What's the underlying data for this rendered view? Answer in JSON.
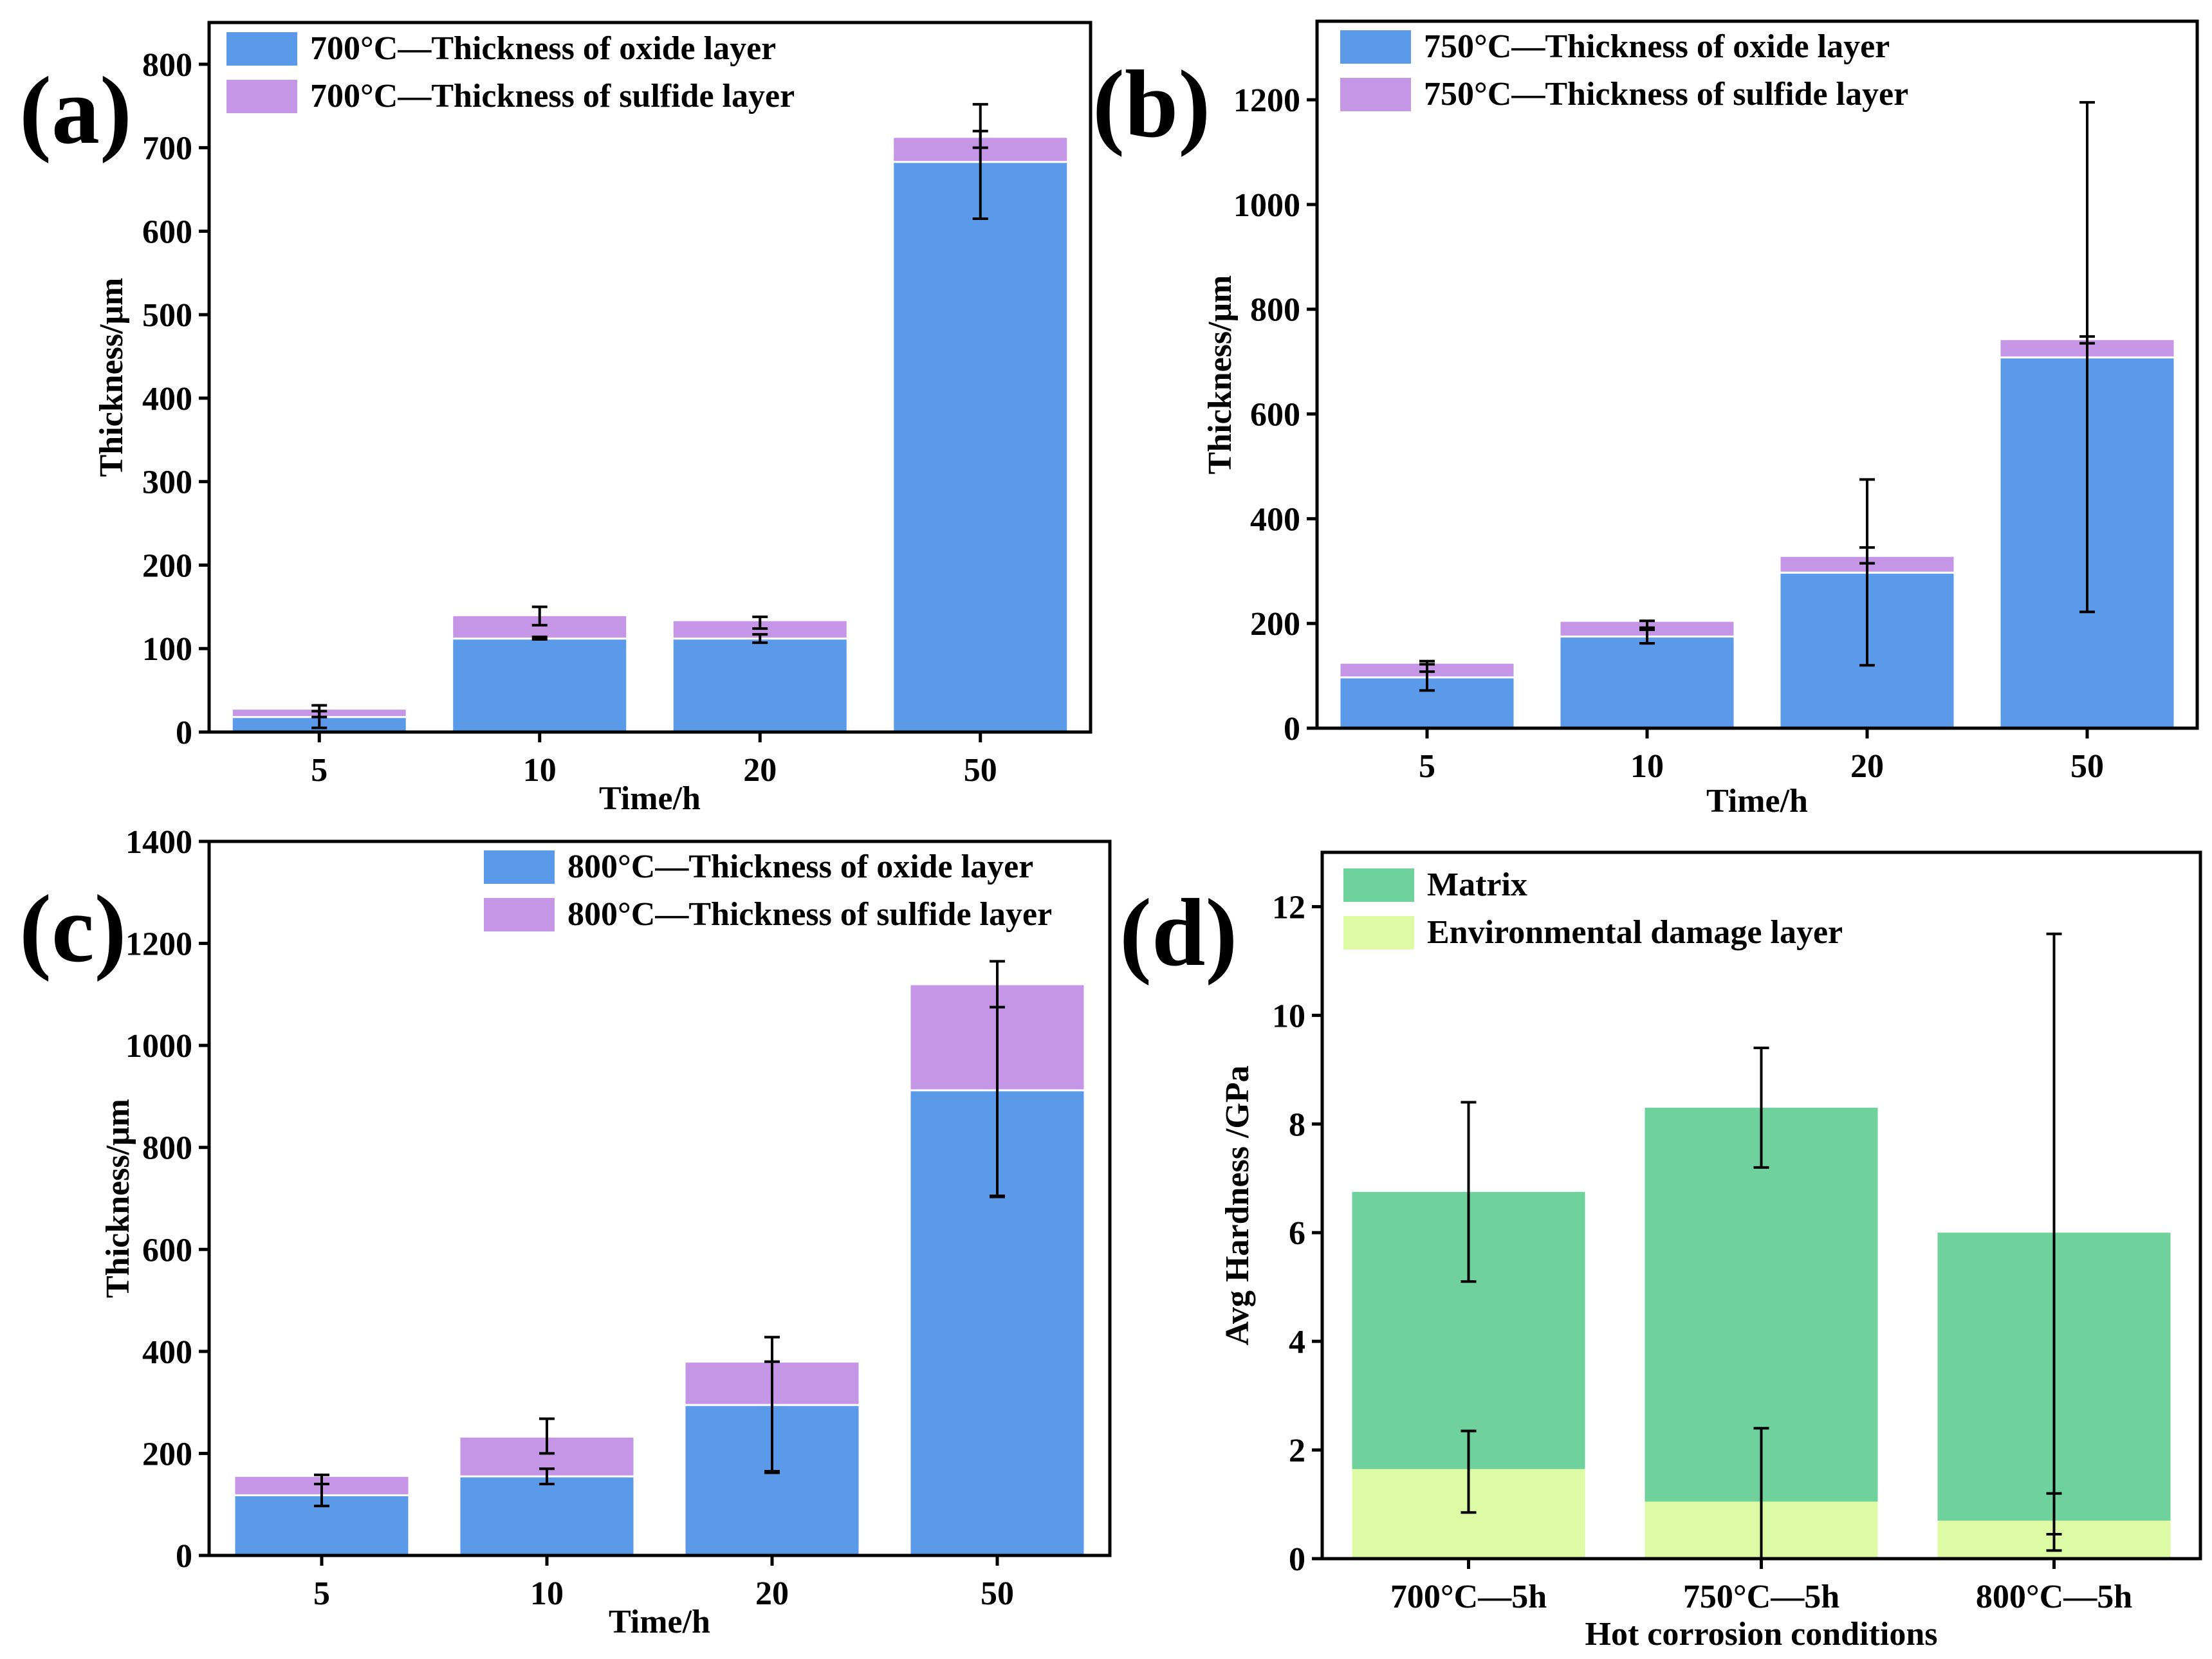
{
  "figure": {
    "panels": [
      {
        "label": "(a)"
      },
      {
        "label": "(b)"
      },
      {
        "label": "(c)"
      },
      {
        "label": "(d)"
      }
    ]
  },
  "colors": {
    "oxide": "#5b9ae8",
    "sulfide": "#c596e6",
    "matrix": "#6fd19c",
    "damage": "#dcfba4",
    "axis": "#000000"
  },
  "chart_data": [
    {
      "panel": "(a)",
      "type": "bar",
      "stacked": true,
      "categories": [
        "5",
        "10",
        "20",
        "50"
      ],
      "series": [
        {
          "name": "700°C—Thickness of oxide layer",
          "color_key": "oxide",
          "values": [
            18,
            112,
            112,
            683
          ],
          "err_low": [
            5,
            111,
            107,
            615
          ],
          "err_high": [
            25,
            114,
            117,
            720
          ]
        },
        {
          "name": "700°C—Thickness of sulfide layer",
          "color_key": "sulfide",
          "values": [
            10,
            28,
            22,
            30
          ],
          "err_low": [
            18,
            128,
            124,
            700
          ],
          "err_high": [
            32,
            150,
            138,
            752
          ]
        }
      ],
      "xlabel": "Time/h",
      "ylabel": "Thickness/μm",
      "ylim": [
        0,
        850
      ],
      "yticks": [
        0,
        100,
        200,
        300,
        400,
        500,
        600,
        700,
        800
      ]
    },
    {
      "panel": "(b)",
      "type": "bar",
      "stacked": true,
      "categories": [
        "5",
        "10",
        "20",
        "50"
      ],
      "series": [
        {
          "name": "750°C—Thickness of oxide layer",
          "color_key": "oxide",
          "values": [
            97,
            175,
            297,
            708
          ],
          "err_low": [
            72,
            162,
            120,
            222
          ],
          "err_high": [
            122,
            188,
            475,
            1195
          ]
        },
        {
          "name": "750°C—Thickness of sulfide layer",
          "color_key": "sulfide",
          "values": [
            28,
            30,
            32,
            35
          ],
          "err_low": [
            108,
            192,
            315,
            735
          ],
          "err_high": [
            128,
            205,
            345,
            748
          ]
        }
      ],
      "xlabel": "Time/h",
      "ylabel": "Thickness/μm",
      "ylim": [
        0,
        1350
      ],
      "yticks": [
        0,
        200,
        400,
        600,
        800,
        1000,
        1200
      ]
    },
    {
      "panel": "(c)",
      "type": "bar",
      "stacked": true,
      "categories": [
        "5",
        "10",
        "20",
        "50"
      ],
      "series": [
        {
          "name": "800°C—Thickness of oxide layer",
          "color_key": "oxide",
          "values": [
            118,
            155,
            295,
            912
          ],
          "err_low": [
            97,
            140,
            162,
            703
          ],
          "err_high": [
            140,
            170,
            380,
            1075
          ]
        },
        {
          "name": "800°C—Thickness of sulfide layer",
          "color_key": "sulfide",
          "values": [
            38,
            78,
            85,
            208
          ],
          "err_low": [
            140,
            200,
            165,
            705
          ],
          "err_high": [
            158,
            268,
            428,
            1165
          ]
        }
      ],
      "xlabel": "Time/h",
      "ylabel": "Thickness/μm",
      "ylim": [
        0,
        1400
      ],
      "yticks": [
        0,
        200,
        400,
        600,
        800,
        1000,
        1200,
        1400
      ]
    },
    {
      "panel": "(d)",
      "type": "bar",
      "stacked": false,
      "overlaid": true,
      "categories": [
        "700°C—5h",
        "750°C—5h",
        "800°C—5h"
      ],
      "series": [
        {
          "name": "Matrix",
          "color_key": "matrix",
          "values": [
            6.75,
            8.3,
            6.0
          ],
          "err_low": [
            5.1,
            7.2,
            0.45
          ],
          "err_high": [
            8.4,
            9.4,
            11.5
          ]
        },
        {
          "name": "Environmental damage layer",
          "color_key": "damage",
          "values": [
            1.65,
            1.05,
            0.7
          ],
          "err_low": [
            0.85,
            0.0,
            0.15
          ],
          "err_high": [
            2.35,
            2.4,
            1.2
          ]
        }
      ],
      "xlabel": "Hot corrosion conditions",
      "ylabel": "Avg Hardness /GPa",
      "ylim": [
        0,
        13
      ],
      "yticks": [
        0,
        2,
        4,
        6,
        8,
        10,
        12
      ]
    }
  ]
}
